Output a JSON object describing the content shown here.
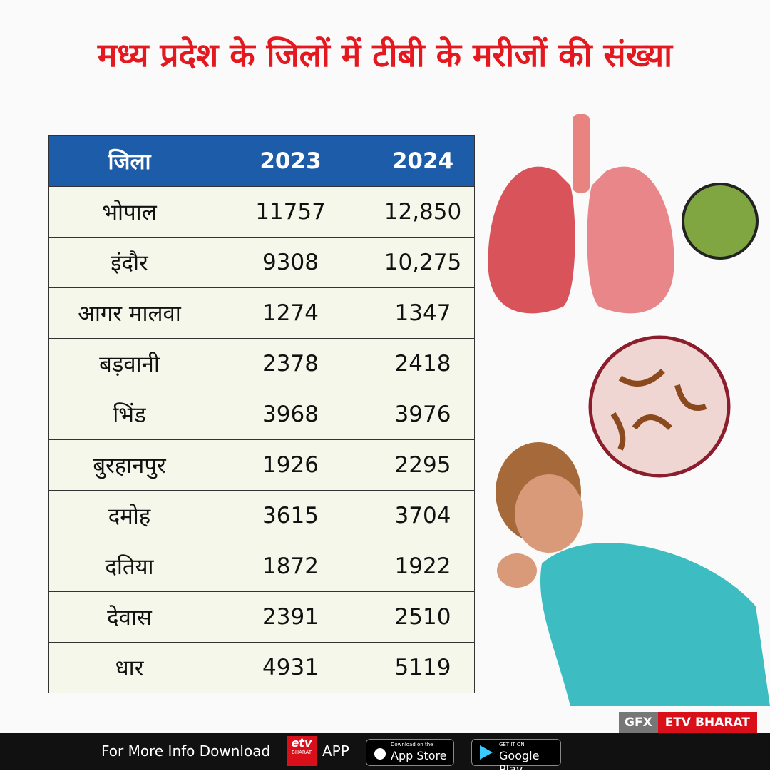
{
  "header": {
    "title": "मध्य प्रदेश के जिलों में टीबी के मरीजों की संख्या"
  },
  "table": {
    "columns": [
      "जिला",
      "2023",
      "2024"
    ],
    "rows": [
      [
        "भोपाल",
        "11757",
        "12,850"
      ],
      [
        "इंदौर",
        "9308",
        "10,275"
      ],
      [
        "आगर मालवा",
        "1274",
        "1347"
      ],
      [
        "बड़वानी",
        "2378",
        "2418"
      ],
      [
        "भिंड",
        "3968",
        "3976"
      ],
      [
        "बुरहानपुर",
        "1926",
        "2295"
      ],
      [
        "दमोह",
        "3615",
        "3704"
      ],
      [
        "दतिया",
        "1872",
        "1922"
      ],
      [
        "देवास",
        "2391",
        "2510"
      ],
      [
        "धार",
        "4931",
        "5119"
      ]
    ]
  },
  "badge": {
    "prefix": "GFX",
    "brand": "ETV BHARAT"
  },
  "footer": {
    "text": "For More Info Download",
    "logo": "etv",
    "logo_sub": "BHARAT",
    "app": "APP",
    "app_store": {
      "small": "Download on the",
      "big": "App Store"
    },
    "google_play": {
      "small": "GET IT ON",
      "big": "Google Play"
    }
  }
}
